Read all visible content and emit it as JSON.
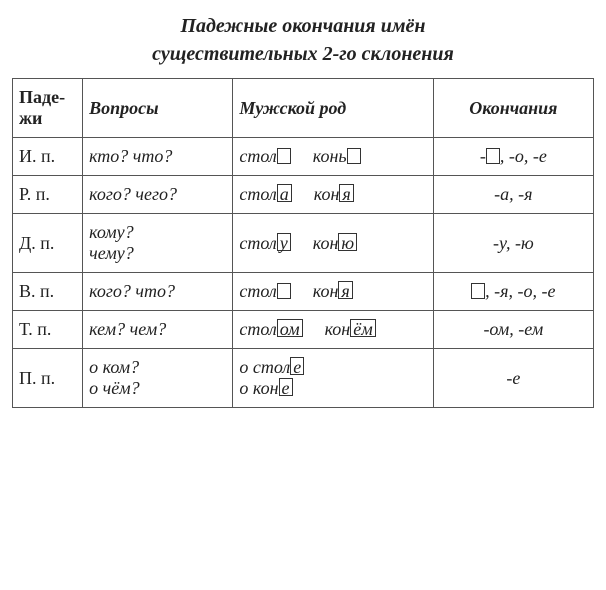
{
  "title_line1": "Падежные окончания имён",
  "title_line2": "существительных 2-го склонения",
  "headers": {
    "case": "Паде-\nжи",
    "questions": "Вопросы",
    "masculine": "Мужской род",
    "endings": "Окончания"
  },
  "rows": [
    {
      "case": "И. п.",
      "q": "кто? что?",
      "m": [
        {
          "t": "стол"
        },
        {
          "box": true,
          "empty": true
        },
        {
          "gap": true
        },
        {
          "t": "конь"
        },
        {
          "box": true,
          "empty": true
        }
      ],
      "e": [
        {
          "t": "-"
        },
        {
          "box": true,
          "empty": true
        },
        {
          "t": ", -о, -е"
        }
      ]
    },
    {
      "case": "Р. п.",
      "q": "кого? чего?",
      "m": [
        {
          "t": "стол"
        },
        {
          "box": true,
          "v": "а"
        },
        {
          "gap": true
        },
        {
          "t": "кон"
        },
        {
          "box": true,
          "v": "я"
        }
      ],
      "e": [
        {
          "t": "-а, -я"
        }
      ]
    },
    {
      "case": "Д. п.",
      "q": "кому?\nчему?",
      "m": [
        {
          "t": "стол"
        },
        {
          "box": true,
          "v": "у"
        },
        {
          "gap": true
        },
        {
          "t": "кон"
        },
        {
          "box": true,
          "v": "ю"
        }
      ],
      "e": [
        {
          "t": "-у, -ю"
        }
      ]
    },
    {
      "case": "В. п.",
      "q": "кого? что?",
      "m": [
        {
          "t": "стол"
        },
        {
          "box": true,
          "empty": true
        },
        {
          "gap": true
        },
        {
          "t": "кон"
        },
        {
          "box": true,
          "v": "я"
        }
      ],
      "e": [
        {
          "box": true,
          "empty": true
        },
        {
          "t": ", -я, -о, -е"
        }
      ]
    },
    {
      "case": "Т. п.",
      "q": "кем? чем?",
      "m": [
        {
          "t": "стол"
        },
        {
          "box": true,
          "v": "ом"
        },
        {
          "gap": true
        },
        {
          "t": "кон"
        },
        {
          "box": true,
          "v": "ём"
        }
      ],
      "e": [
        {
          "t": "-ом,  -ем"
        }
      ]
    },
    {
      "case": "П. п.",
      "q": "о ком?\nо чём?",
      "m": [
        {
          "t": "о стол"
        },
        {
          "box": true,
          "v": "е"
        },
        {
          "br": true
        },
        {
          "t": "о кон"
        },
        {
          "box": true,
          "v": "е"
        }
      ],
      "e": [
        {
          "t": "-е"
        }
      ]
    }
  ]
}
